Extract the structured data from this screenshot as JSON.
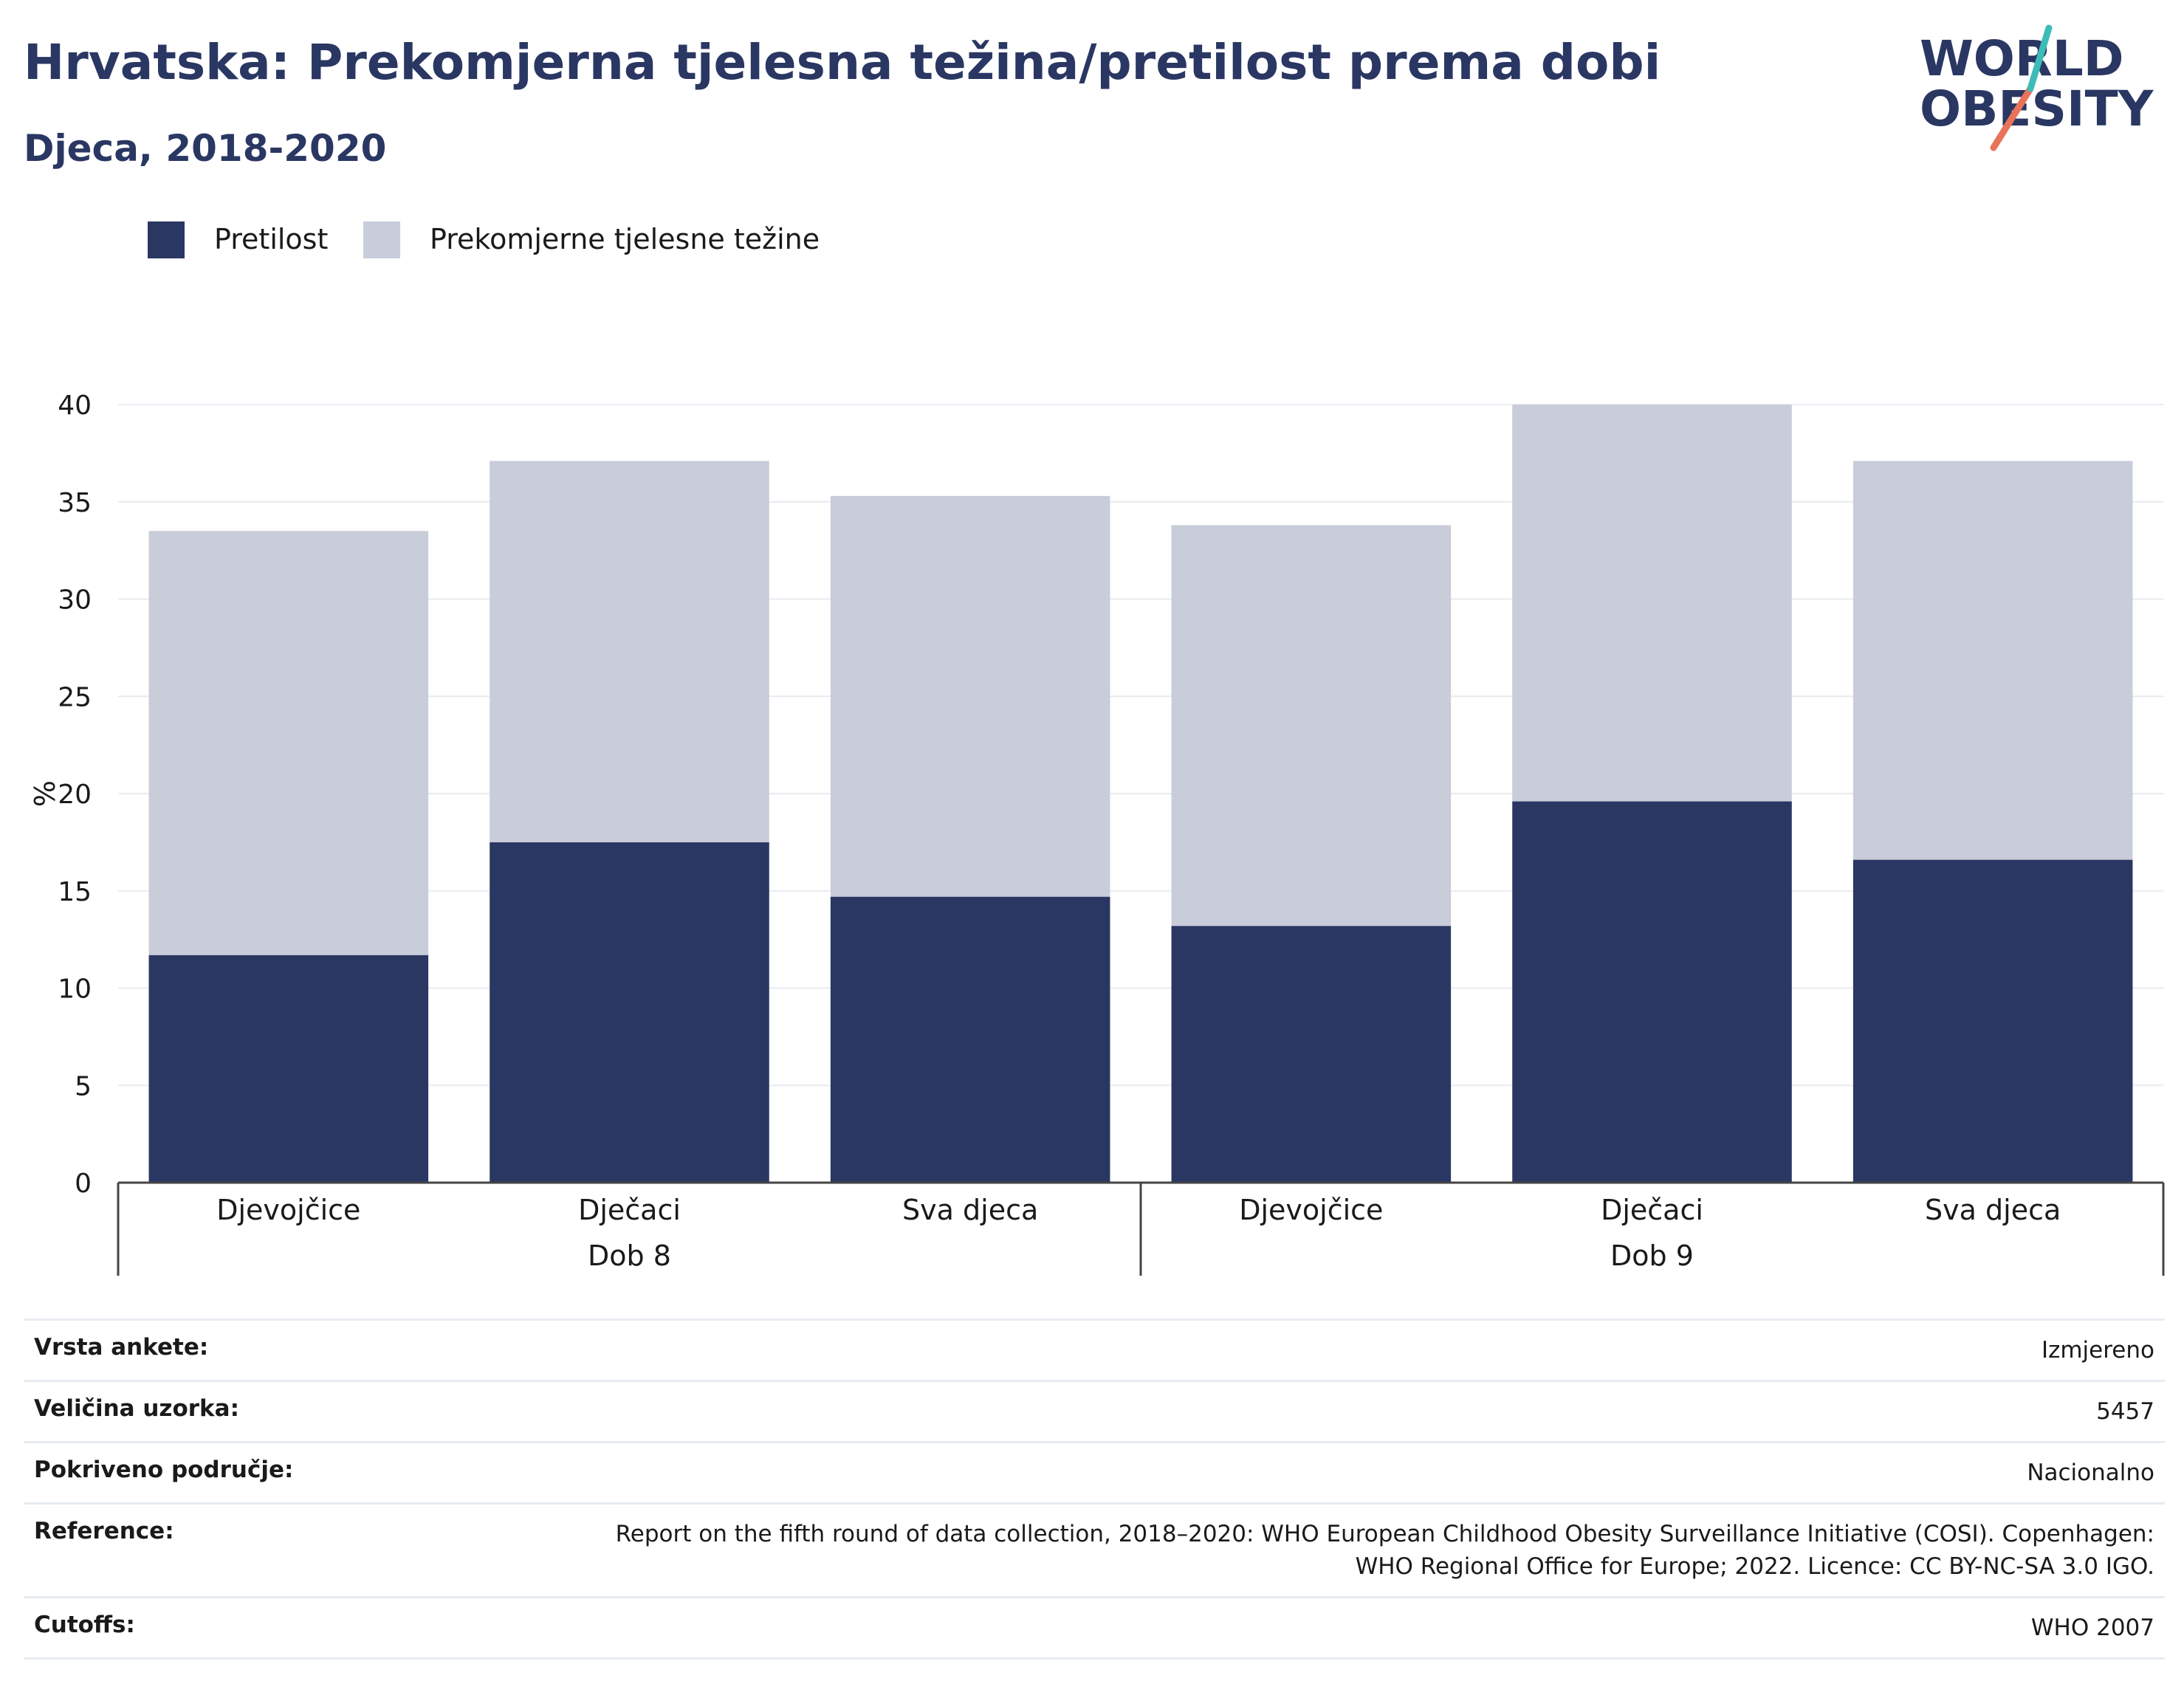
{
  "header": {
    "title": "Hrvatska: Prekomjerna tjelesna težina/pretilost prema dobi",
    "subtitle": "Djeca, 2018-2020"
  },
  "logo": {
    "line1": "WORLD",
    "line2": "OBESITY"
  },
  "colors": {
    "obesity": "#2a3763",
    "overweight": "#c9ccd9",
    "text": "#1a1a1a",
    "heading": "#2a3763",
    "logo_teal": "#3dbcb7",
    "logo_coral": "#e8735a"
  },
  "legend": [
    {
      "label": "Pretilost",
      "color": "#2a3763"
    },
    {
      "label": "Prekomjerne tjelesne težine",
      "color": "#c9ccd9"
    }
  ],
  "chart_data": {
    "type": "bar",
    "stacked": true,
    "ylabel": "%",
    "ylim": [
      0,
      40
    ],
    "yticks": [
      0,
      5,
      10,
      15,
      20,
      25,
      30,
      35,
      40
    ],
    "grid": true,
    "legend_position": "top-left",
    "groups": [
      {
        "label": "Dob 8",
        "categories": [
          "Djevojčice",
          "Dječaci",
          "Sva djeca"
        ]
      },
      {
        "label": "Dob 9",
        "categories": [
          "Djevojčice",
          "Dječaci",
          "Sva djeca"
        ]
      }
    ],
    "categories": [
      "Djevojčice",
      "Dječaci",
      "Sva djeca",
      "Djevojčice",
      "Dječaci",
      "Sva djeca"
    ],
    "series": [
      {
        "name": "Pretilost",
        "values": [
          11.7,
          17.5,
          14.7,
          13.2,
          19.6,
          16.6
        ]
      },
      {
        "name": "Prekomjerne tjelesne težine",
        "values": [
          21.8,
          19.6,
          20.6,
          20.6,
          20.4,
          20.5
        ]
      }
    ]
  },
  "info_table": [
    {
      "key": "Vrsta ankete:",
      "value": "Izmjereno"
    },
    {
      "key": "Veličina uzorka:",
      "value": "5457"
    },
    {
      "key": "Pokriveno područje:",
      "value": "Nacionalno"
    },
    {
      "key": "Reference:",
      "value": "Report on the fifth round of data collection, 2018–2020: WHO European Childhood Obesity Surveillance Initiative (COSI). Copenhagen: WHO Regional Office for Europe; 2022. Licence: CC BY-NC-SA 3.0 IGO."
    },
    {
      "key": "Cutoffs:",
      "value": "WHO 2007"
    }
  ]
}
